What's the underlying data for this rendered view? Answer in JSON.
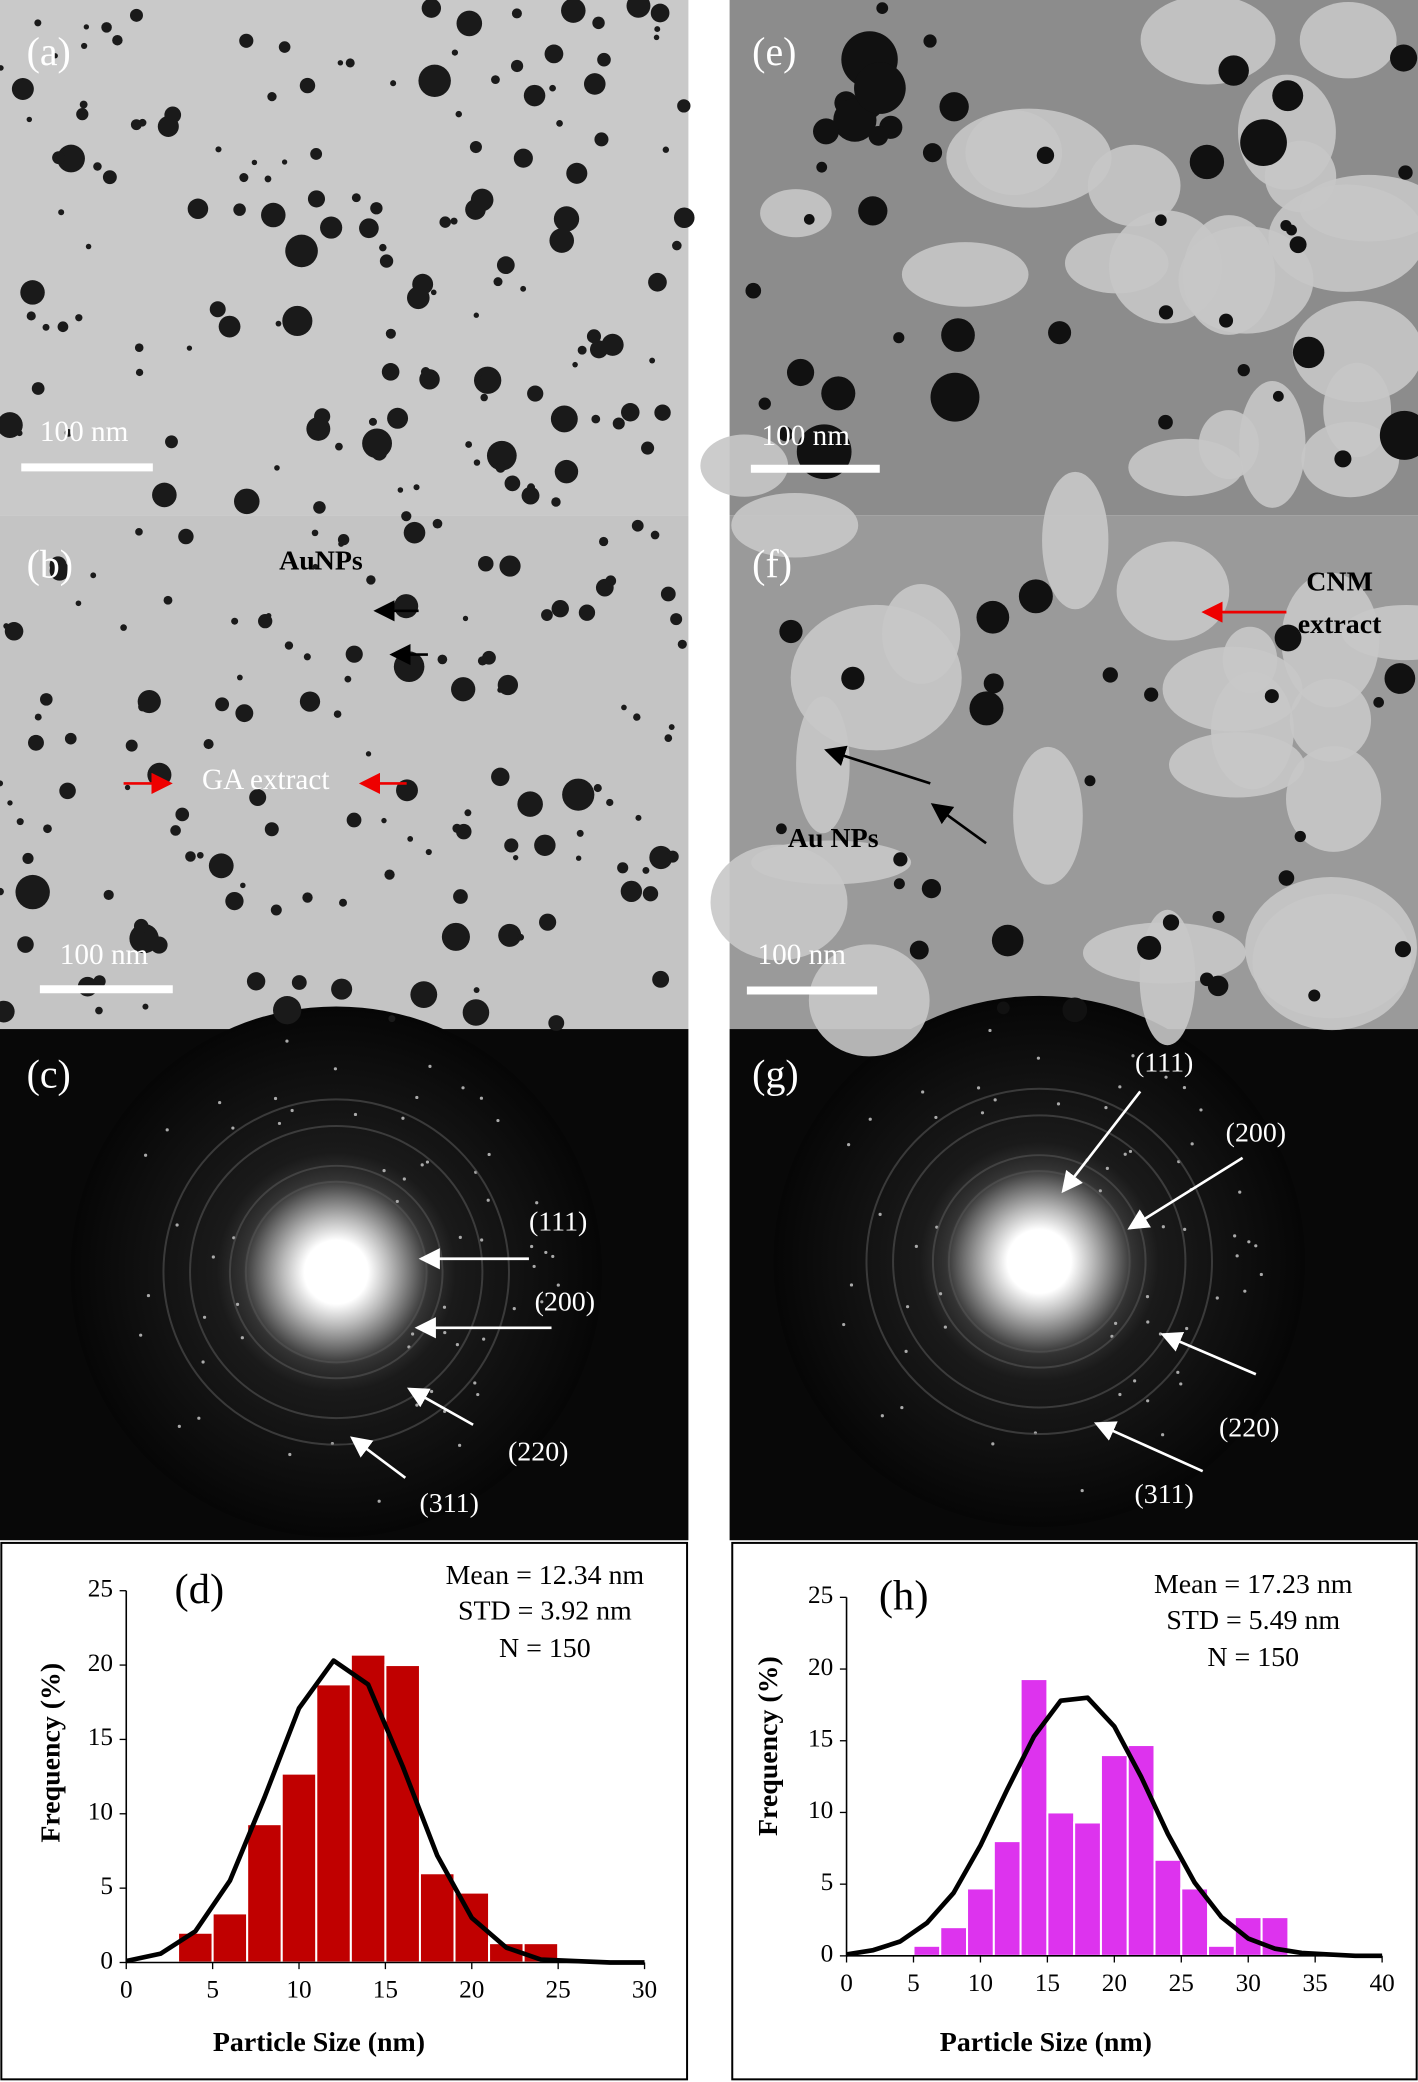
{
  "panels": [
    {
      "label": "(a)",
      "scale_bar": "100 nm"
    },
    {
      "label": "(b)",
      "scale_bar": "100 nm",
      "annotations": [
        "AuNPs",
        "GA extract"
      ]
    },
    {
      "label": "(c)",
      "annotations": [
        "(111)",
        "(200)",
        "(220)",
        "(311)"
      ]
    },
    {
      "label": "(e)",
      "scale_bar": "100 nm"
    },
    {
      "label": "(f)",
      "scale_bar": "100 nm",
      "annotations": [
        "CNM",
        "extract",
        "Au NPs"
      ]
    },
    {
      "label": "(g)",
      "annotations": [
        "(111)",
        "(200)",
        "(220)",
        "(311)"
      ]
    }
  ],
  "chart_data": [
    {
      "type": "histogram",
      "title": "(d)",
      "annotations": [
        "Mean = 12.34 nm",
        "STD = 3.92 nm",
        "N = 150"
      ],
      "xlabel": "Particle Size (nm)",
      "ylabel": "Frequency (%)",
      "bins": [
        3,
        5,
        7,
        9,
        11,
        13,
        15,
        17,
        19,
        21,
        23,
        25
      ],
      "values": [
        2.0,
        3.3,
        9.3,
        12.7,
        18.7,
        20.7,
        20.0,
        6.0,
        4.7,
        1.3,
        1.3
      ],
      "color": "#c00000",
      "fit_curve": {
        "x": [
          0,
          2,
          4,
          6,
          8,
          10,
          12,
          14,
          16,
          18,
          20,
          22,
          24,
          26,
          28,
          30
        ],
        "y": [
          0.1,
          0.6,
          2.1,
          5.5,
          11.1,
          17.1,
          20.3,
          18.7,
          13.2,
          7.2,
          3.0,
          1.0,
          0.2,
          0.1,
          0,
          0
        ],
        "color": "#000000"
      },
      "xlim": [
        0,
        30
      ],
      "xticks": [
        0,
        5,
        10,
        15,
        20,
        25,
        30
      ],
      "ylim": [
        0,
        25
      ],
      "yticks": [
        0,
        5,
        10,
        15,
        20,
        25
      ]
    },
    {
      "type": "histogram",
      "title": "(h)",
      "annotations": [
        "Mean = 17.23 nm",
        "STD = 5.49 nm",
        "N = 150"
      ],
      "xlabel": "Particle Size (nm)",
      "ylabel": "Frequency (%)",
      "bins": [
        5,
        7,
        9,
        11,
        13,
        15,
        17,
        19,
        21,
        23,
        25,
        27,
        29,
        31,
        33
      ],
      "values": [
        0.7,
        2.0,
        4.7,
        8.0,
        19.3,
        10.0,
        9.3,
        14.0,
        14.7,
        6.7,
        4.7,
        0.7,
        2.7,
        2.7
      ],
      "color": "#dd33ee",
      "fit_curve": {
        "x": [
          0,
          2,
          4,
          6,
          8,
          10,
          12,
          14,
          16,
          18,
          20,
          22,
          24,
          26,
          28,
          30,
          32,
          34,
          36,
          38,
          40
        ],
        "y": [
          0.1,
          0.4,
          1.0,
          2.3,
          4.4,
          7.7,
          11.6,
          15.3,
          17.8,
          18.0,
          16.0,
          12.5,
          8.5,
          5.1,
          2.7,
          1.2,
          0.5,
          0.2,
          0.1,
          0,
          0
        ],
        "color": "#000000"
      },
      "xlim": [
        0,
        40
      ],
      "xticks": [
        0,
        5,
        10,
        15,
        20,
        25,
        30,
        35,
        40
      ],
      "ylim": [
        0,
        25
      ],
      "yticks": [
        0,
        5,
        10,
        15,
        20,
        25
      ]
    }
  ]
}
